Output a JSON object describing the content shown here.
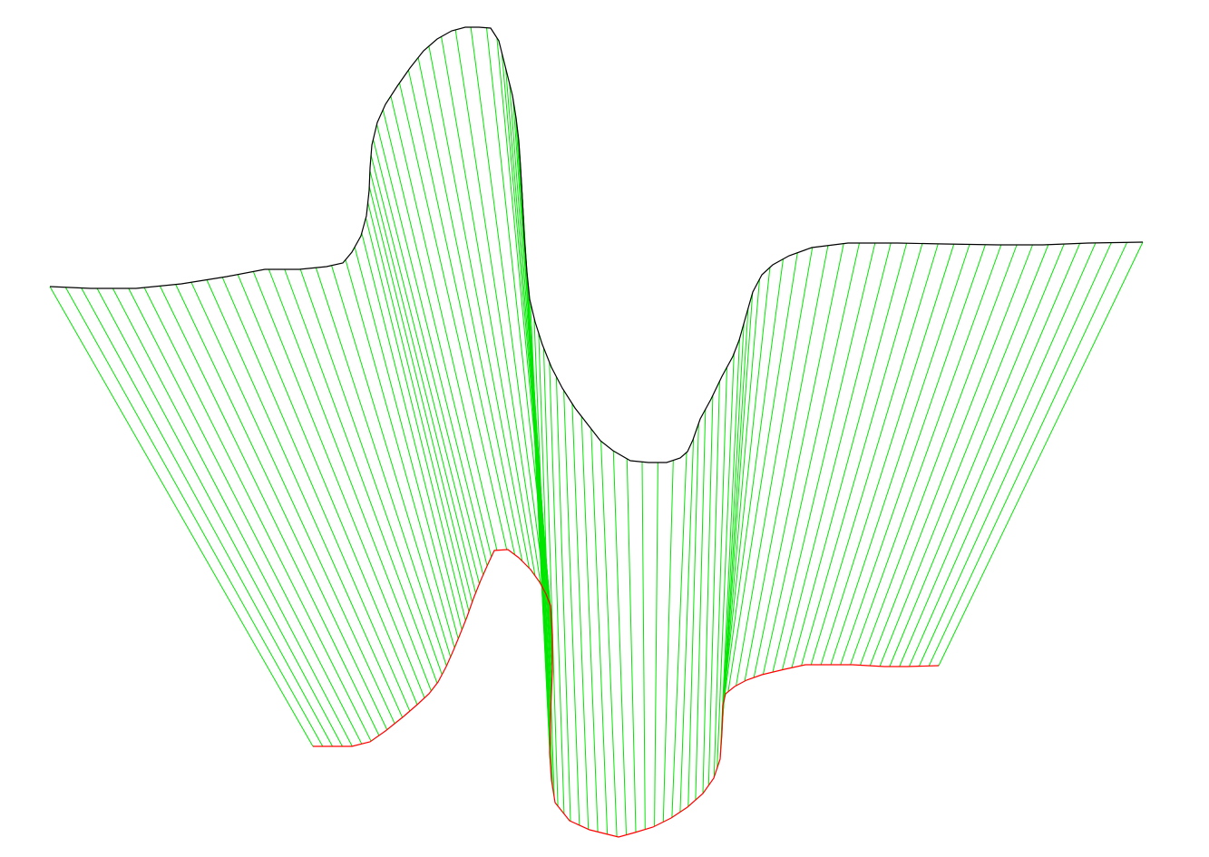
{
  "colors": {
    "background": "#ffffff",
    "top_curve": "#000000",
    "bottom_curve": "#ff0000",
    "connectors": "#00e600"
  }
}
